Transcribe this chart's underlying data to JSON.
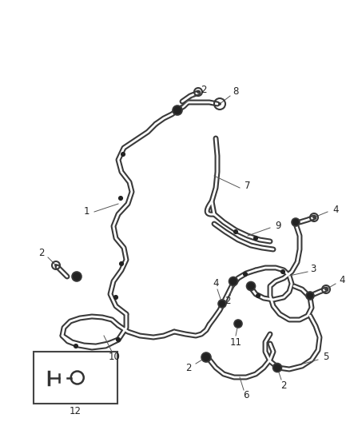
{
  "bg_color": "#ffffff",
  "line_color": "#3a3a3a",
  "label_color": "#222222",
  "lw": 1.5,
  "figsize": [
    4.38,
    5.33
  ],
  "dpi": 100
}
